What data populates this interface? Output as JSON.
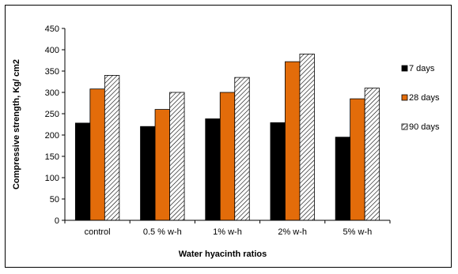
{
  "chart_data": {
    "type": "bar",
    "title": "",
    "xlabel": "Water hyacinth ratios",
    "ylabel": "Compressive strength, Kg/ cm2",
    "ylim": [
      0,
      450
    ],
    "yticks": [
      0,
      50,
      100,
      150,
      200,
      250,
      300,
      350,
      400,
      450
    ],
    "categories": [
      "control",
      "0.5 % w-h",
      "1% w-h",
      "2% w-h",
      "5% w-h"
    ],
    "series": [
      {
        "name": "7 days",
        "color": "#000000",
        "fill": "solid",
        "values": [
          228,
          220,
          238,
          229,
          195
        ]
      },
      {
        "name": "28 days",
        "color": "#e36c0a",
        "fill": "solid",
        "values": [
          308,
          260,
          300,
          372,
          285
        ]
      },
      {
        "name": "90 days",
        "color": "#ffffff",
        "fill": "hatch",
        "values": [
          340,
          300,
          335,
          390,
          310
        ]
      }
    ],
    "grid": false,
    "legend": "right"
  }
}
